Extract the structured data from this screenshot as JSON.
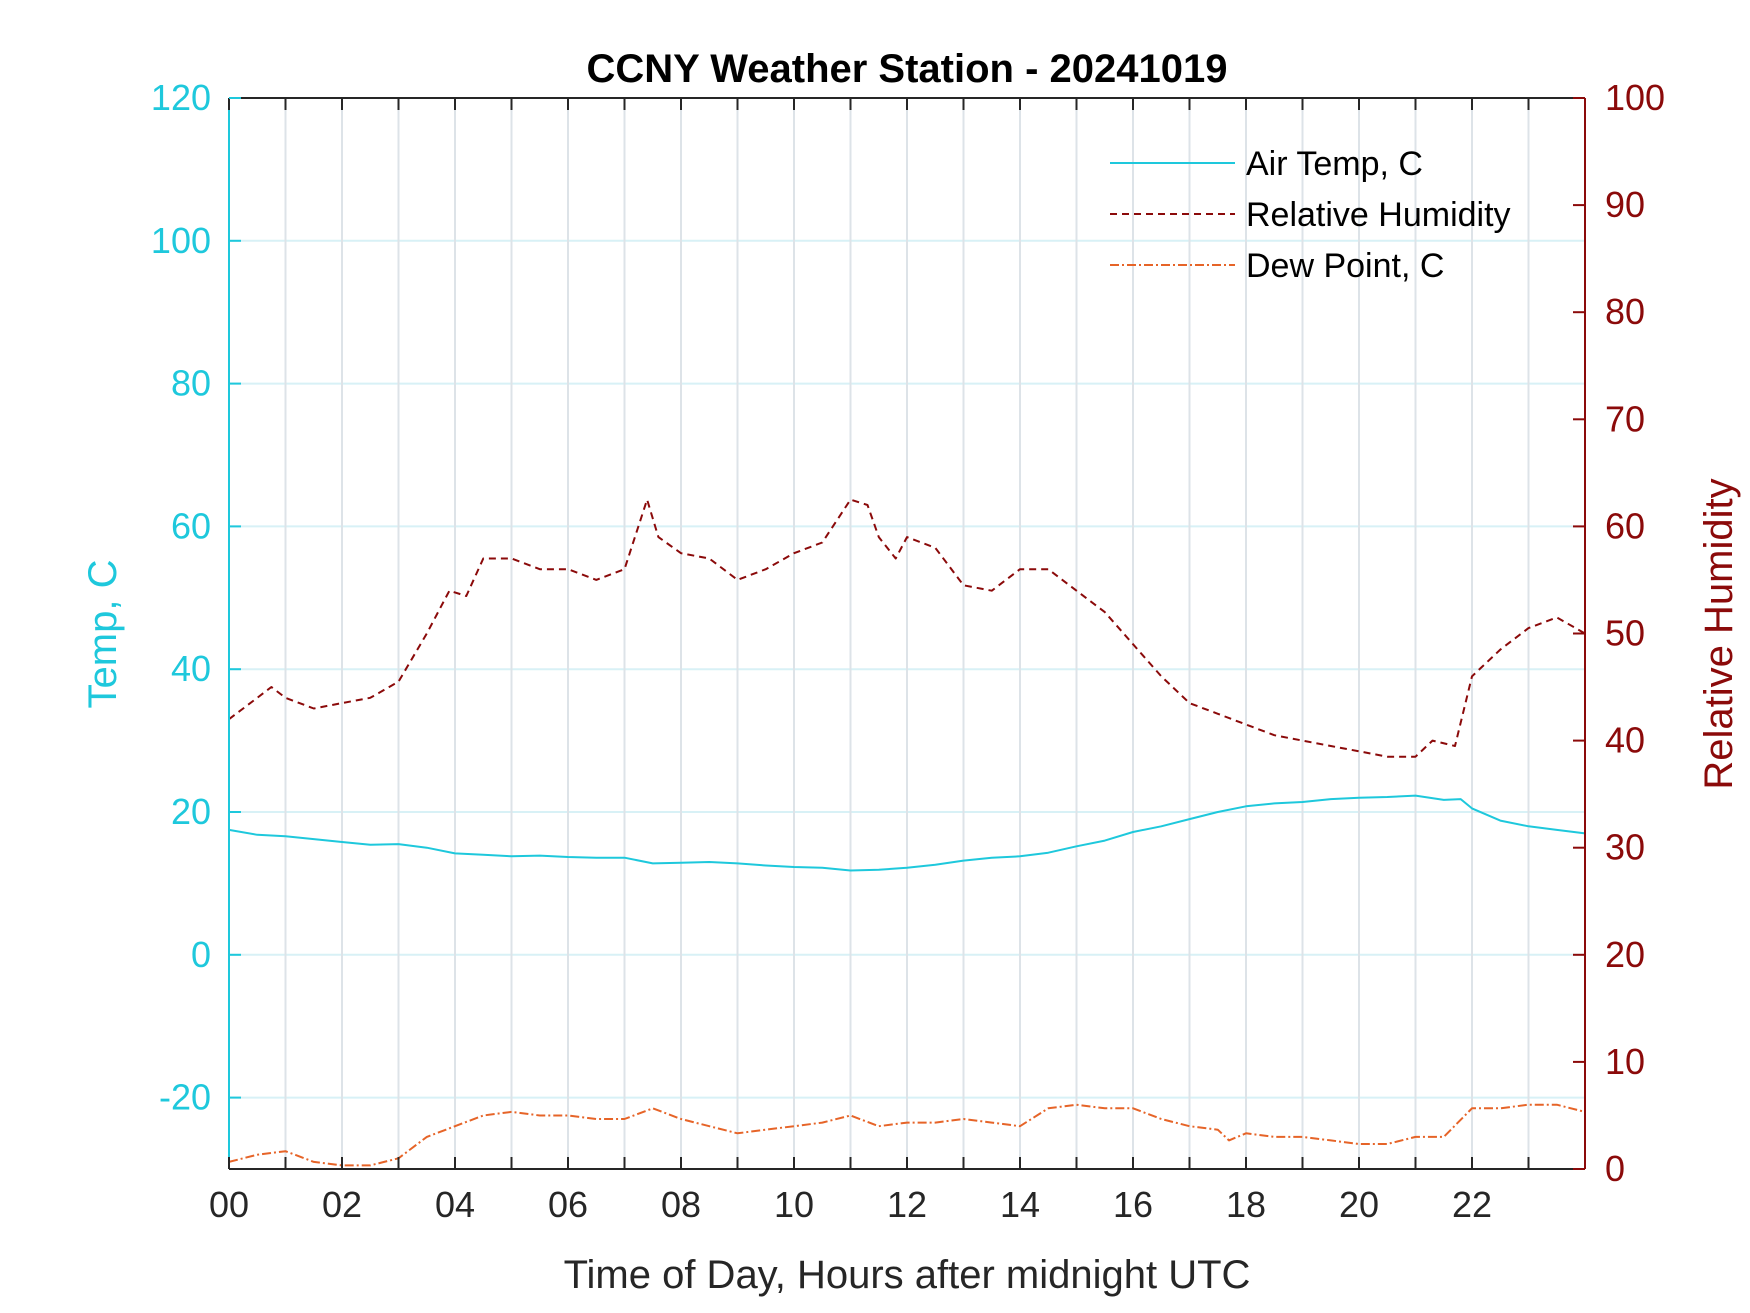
{
  "chart_data": {
    "type": "line",
    "title": "CCNY Weather Station - 20241019",
    "xlabel": "Time of Day, Hours after midnight UTC",
    "ylabel_left": "Temp, C",
    "ylabel_right": "Relative Humidity",
    "xlim": [
      0,
      24
    ],
    "ylim_left": [
      -30,
      120
    ],
    "ylim_right": [
      0,
      100
    ],
    "x_ticks": [
      0,
      2,
      4,
      6,
      8,
      10,
      12,
      14,
      16,
      18,
      20,
      22
    ],
    "x_tick_labels": [
      "00",
      "02",
      "04",
      "06",
      "08",
      "10",
      "12",
      "14",
      "16",
      "18",
      "20",
      "22"
    ],
    "y_left_ticks": [
      -20,
      0,
      20,
      40,
      60,
      80,
      100,
      120
    ],
    "y_left_tick_labels": [
      "-20",
      "0",
      "20",
      "40",
      "60",
      "80",
      "100",
      "120"
    ],
    "y_right_ticks": [
      0,
      10,
      20,
      30,
      40,
      50,
      60,
      70,
      80,
      90,
      100
    ],
    "y_right_tick_labels": [
      "0",
      "10",
      "20",
      "30",
      "40",
      "50",
      "60",
      "70",
      "80",
      "90",
      "100"
    ],
    "grid": true,
    "legend_position": "top-right",
    "series": [
      {
        "name": "Air Temp, C",
        "axis": "left",
        "style": "solid",
        "color": "#1ec8dc",
        "x": [
          0,
          0.5,
          1,
          1.5,
          2,
          2.5,
          3,
          3.5,
          4,
          4.5,
          5,
          5.5,
          6,
          6.5,
          7,
          7.5,
          8,
          8.5,
          9,
          9.5,
          10,
          10.5,
          11,
          11.5,
          12,
          12.5,
          13,
          13.5,
          14,
          14.5,
          15,
          15.5,
          16,
          16.5,
          17,
          17.5,
          18,
          18.5,
          19,
          19.5,
          20,
          20.5,
          21,
          21.5,
          21.8,
          22,
          22.5,
          23,
          23.5,
          24
        ],
        "values": [
          17.5,
          16.8,
          16.6,
          16.2,
          15.8,
          15.4,
          15.5,
          15.0,
          14.2,
          14.0,
          13.8,
          13.9,
          13.7,
          13.6,
          13.6,
          12.8,
          12.9,
          13.0,
          12.8,
          12.5,
          12.3,
          12.2,
          11.8,
          11.9,
          12.2,
          12.6,
          13.2,
          13.6,
          13.8,
          14.3,
          15.2,
          16.0,
          17.2,
          18.0,
          19.0,
          20.0,
          20.8,
          21.2,
          21.4,
          21.8,
          22.0,
          22.1,
          22.3,
          21.7,
          21.8,
          20.5,
          18.8,
          18.0,
          17.5,
          17.0
        ]
      },
      {
        "name": "Relative Humidity",
        "axis": "right",
        "style": "dashed",
        "color": "#8b0a0a",
        "x": [
          0,
          0.5,
          0.75,
          1,
          1.5,
          2,
          2.5,
          3,
          3.5,
          3.9,
          4.2,
          4.5,
          5,
          5.5,
          6,
          6.5,
          7,
          7.4,
          7.6,
          8,
          8.5,
          9,
          9.5,
          10,
          10.5,
          11,
          11.3,
          11.5,
          11.8,
          12,
          12.5,
          13,
          13.5,
          14,
          14.5,
          15,
          15.5,
          16,
          16.5,
          17,
          17.5,
          18,
          18.5,
          19,
          19.5,
          20,
          20.5,
          21,
          21.3,
          21.7,
          22,
          22.5,
          23,
          23.5,
          24
        ],
        "values": [
          42,
          44,
          45,
          44,
          43,
          43.5,
          44,
          45.5,
          50,
          54,
          53.5,
          57,
          57,
          56,
          56,
          55,
          56,
          62.5,
          59,
          57.5,
          57,
          55,
          56,
          57.5,
          58.5,
          62.5,
          62,
          59,
          57,
          59,
          58,
          54.5,
          54,
          56,
          56,
          54,
          52,
          49,
          46,
          43.5,
          42.5,
          41.5,
          40.5,
          40,
          39.5,
          39,
          38.5,
          38.5,
          40,
          39.5,
          46,
          48.5,
          50.5,
          51.5,
          50
        ]
      },
      {
        "name": "Dew Point, C",
        "axis": "left",
        "style": "dash-dot",
        "color": "#e66428",
        "x": [
          0,
          0.5,
          1,
          1.5,
          2,
          2.5,
          3,
          3.5,
          4,
          4.5,
          5,
          5.5,
          6,
          6.5,
          7,
          7.5,
          8,
          8.5,
          9,
          9.5,
          10,
          10.5,
          11,
          11.5,
          12,
          12.5,
          13,
          13.5,
          14,
          14.5,
          15,
          15.5,
          16,
          16.5,
          17,
          17.5,
          17.7,
          18,
          18.5,
          19,
          19.5,
          20,
          20.5,
          21,
          21.5,
          22,
          22.5,
          23,
          23.5,
          24
        ],
        "values": [
          -29,
          -28,
          -27.5,
          -29,
          -29.5,
          -29.5,
          -28.5,
          -25.5,
          -24,
          -22.5,
          -22,
          -22.5,
          -22.5,
          -23,
          -23,
          -21.5,
          -23,
          -24,
          -25,
          -24.5,
          -24,
          -23.5,
          -22.5,
          -24,
          -23.5,
          -23.5,
          -23,
          -23.5,
          -24,
          -21.5,
          -21,
          -21.5,
          -21.5,
          -23,
          -24,
          -24.5,
          -26,
          -25,
          -25.5,
          -25.5,
          -26,
          -26.5,
          -26.5,
          -25.5,
          -25.5,
          -21.5,
          -21.5,
          -21,
          -21,
          -22
        ]
      }
    ]
  }
}
